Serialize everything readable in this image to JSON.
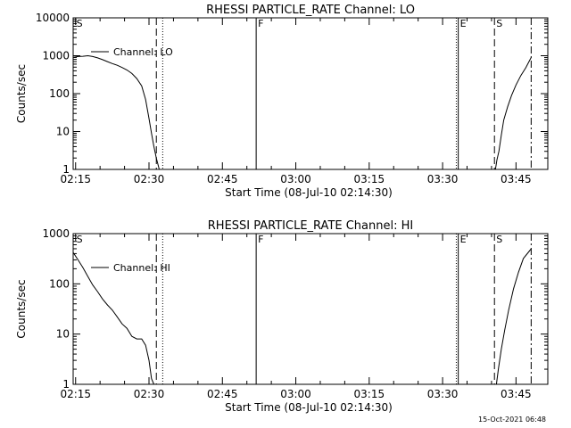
{
  "footer": {
    "date": "15-Oct-2021 06:48"
  },
  "chart_data": [
    {
      "type": "line",
      "title": "RHESSI PARTICLE_RATE Channel: LO",
      "xlabel": "Start Time (08-Jul-10 02:14:30)",
      "ylabel": "Counts/sec",
      "yscale": "log",
      "ylim": [
        1,
        10000
      ],
      "xlim_minutes_from_start": [
        0,
        97
      ],
      "x_ticks": [
        {
          "label": "02:15",
          "t": 0.5
        },
        {
          "label": "02:30",
          "t": 15.5
        },
        {
          "label": "02:45",
          "t": 30.5
        },
        {
          "label": "03:00",
          "t": 45.5
        },
        {
          "label": "03:15",
          "t": 60.5
        },
        {
          "label": "03:30",
          "t": 75.5
        },
        {
          "label": "03:45",
          "t": 90.5
        }
      ],
      "y_ticks": [
        {
          "label": "1",
          "v": 1
        },
        {
          "label": "10",
          "v": 10
        },
        {
          "label": "100",
          "v": 100
        },
        {
          "label": "1000",
          "v": 1000
        },
        {
          "label": "10000",
          "v": 10000
        }
      ],
      "legend": "Channel: LO",
      "markers": [
        {
          "letter": "S",
          "t": 0.3,
          "style": "none"
        },
        {
          "letter": "",
          "t": 17.0,
          "style": "dashed"
        },
        {
          "letter": "",
          "t": 18.3,
          "style": "dotted"
        },
        {
          "letter": "F",
          "t": 37.4,
          "style": "solid"
        },
        {
          "letter": "",
          "t": 78.3,
          "style": "dotted"
        },
        {
          "letter": "E",
          "t": 78.7,
          "style": "solid"
        },
        {
          "letter": "S",
          "t": 86.1,
          "style": "dashed"
        },
        {
          "letter": "",
          "t": 93.6,
          "style": "dashdot"
        }
      ],
      "series": [
        {
          "name": "Channel: LO",
          "segments": [
            [
              [
                0.0,
                900
              ],
              [
                1.0,
                950
              ],
              [
                2.0,
                970
              ],
              [
                3.0,
                1000
              ],
              [
                4.0,
                950
              ],
              [
                5.0,
                880
              ],
              [
                6.0,
                790
              ],
              [
                7.0,
                700
              ],
              [
                8.0,
                620
              ],
              [
                9.0,
                560
              ],
              [
                10.0,
                490
              ],
              [
                11.0,
                420
              ],
              [
                12.0,
                340
              ],
              [
                13.0,
                250
              ],
              [
                14.0,
                160
              ],
              [
                14.8,
                70
              ],
              [
                15.5,
                22
              ],
              [
                16.0,
                9
              ],
              [
                16.5,
                4
              ],
              [
                17.0,
                2
              ],
              [
                17.6,
                1
              ]
            ],
            [
              [
                86.3,
                1
              ],
              [
                86.6,
                1.8
              ],
              [
                87.0,
                3
              ],
              [
                87.5,
                8
              ],
              [
                88.0,
                20
              ],
              [
                88.8,
                45
              ],
              [
                89.6,
                90
              ],
              [
                90.5,
                170
              ],
              [
                91.5,
                300
              ],
              [
                92.5,
                480
              ],
              [
                93.6,
                900
              ]
            ]
          ]
        }
      ]
    },
    {
      "type": "line",
      "title": "RHESSI PARTICLE_RATE Channel: HI",
      "xlabel": "Start Time (08-Jul-10 02:14:30)",
      "ylabel": "Counts/sec",
      "yscale": "log",
      "ylim": [
        1,
        1000
      ],
      "xlim_minutes_from_start": [
        0,
        97
      ],
      "x_ticks": [
        {
          "label": "02:15",
          "t": 0.5
        },
        {
          "label": "02:30",
          "t": 15.5
        },
        {
          "label": "02:45",
          "t": 30.5
        },
        {
          "label": "03:00",
          "t": 45.5
        },
        {
          "label": "03:15",
          "t": 60.5
        },
        {
          "label": "03:30",
          "t": 75.5
        },
        {
          "label": "03:45",
          "t": 90.5
        }
      ],
      "y_ticks": [
        {
          "label": "1",
          "v": 1
        },
        {
          "label": "10",
          "v": 10
        },
        {
          "label": "100",
          "v": 100
        },
        {
          "label": "1000",
          "v": 1000
        }
      ],
      "legend": "Channel: HI",
      "markers": [
        {
          "letter": "S",
          "t": 0.3,
          "style": "none"
        },
        {
          "letter": "",
          "t": 17.0,
          "style": "dashed"
        },
        {
          "letter": "",
          "t": 18.3,
          "style": "dotted"
        },
        {
          "letter": "F",
          "t": 37.4,
          "style": "solid"
        },
        {
          "letter": "",
          "t": 78.3,
          "style": "dotted"
        },
        {
          "letter": "E",
          "t": 78.7,
          "style": "solid"
        },
        {
          "letter": "S",
          "t": 86.1,
          "style": "dashed"
        },
        {
          "letter": "",
          "t": 93.6,
          "style": "dashdot"
        }
      ],
      "series": [
        {
          "name": "Channel: HI",
          "segments": [
            [
              [
                0.0,
                420
              ],
              [
                1.0,
                300
              ],
              [
                2.0,
                210
              ],
              [
                3.0,
                140
              ],
              [
                4.0,
                95
              ],
              [
                5.0,
                70
              ],
              [
                6.0,
                50
              ],
              [
                7.0,
                38
              ],
              [
                8.0,
                30
              ],
              [
                9.0,
                22
              ],
              [
                10.0,
                16
              ],
              [
                11.0,
                13
              ],
              [
                12.0,
                9
              ],
              [
                13.0,
                8
              ],
              [
                14.0,
                8
              ],
              [
                14.8,
                6
              ],
              [
                15.5,
                3
              ],
              [
                16.0,
                1.3
              ],
              [
                16.5,
                1
              ]
            ],
            [
              [
                86.5,
                1
              ],
              [
                86.9,
                2
              ],
              [
                87.5,
                5
              ],
              [
                88.2,
                12
              ],
              [
                89.0,
                30
              ],
              [
                90.0,
                80
              ],
              [
                91.0,
                170
              ],
              [
                92.0,
                320
              ],
              [
                93.6,
                500
              ]
            ]
          ]
        }
      ]
    }
  ]
}
